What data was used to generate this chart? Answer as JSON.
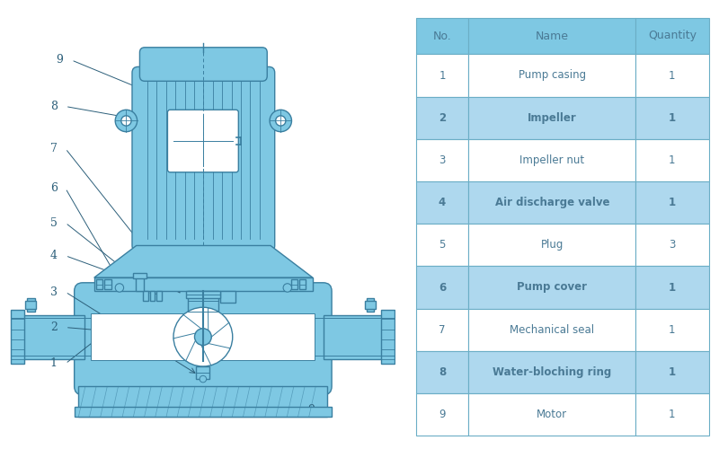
{
  "table_headers": [
    "No.",
    "Name",
    "Quantity"
  ],
  "table_rows": [
    [
      "1",
      "Pump casing",
      "1"
    ],
    [
      "2",
      "Impeller",
      "1"
    ],
    [
      "3",
      "Impeller nut",
      "1"
    ],
    [
      "4",
      "Air discharge valve",
      "1"
    ],
    [
      "5",
      "Plug",
      "3"
    ],
    [
      "6",
      "Pump cover",
      "1"
    ],
    [
      "7",
      "Mechanical seal",
      "1"
    ],
    [
      "8",
      "Water-bloching ring",
      "1"
    ],
    [
      "9",
      "Motor",
      "1"
    ]
  ],
  "row_colors": [
    "#FFFFFF",
    "#AED8EE",
    "#FFFFFF",
    "#AED8EE",
    "#FFFFFF",
    "#AED8EE",
    "#FFFFFF",
    "#AED8EE",
    "#FFFFFF"
  ],
  "header_bg": "#7EC8E3",
  "table_text_color": "#4A7A95",
  "border_color": "#6BAEC6",
  "mc": "#7EC8E3",
  "dk": "#3A7FA0",
  "lc": "#2C5F7A",
  "background": "#FFFFFF"
}
